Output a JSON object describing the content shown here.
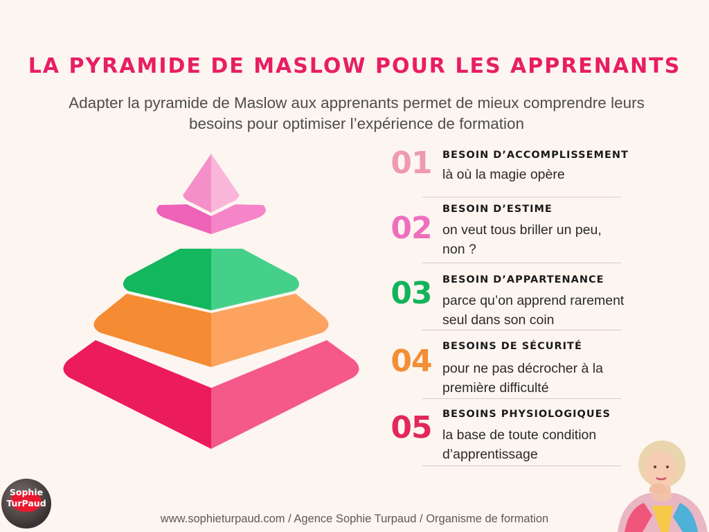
{
  "title": "La pyramide de Maslow pour les apprenants",
  "subtitle": "Adapter la pyramide de Maslow aux apprenants permet de mieux comprendre leurs besoins pour optimiser l’expérience de formation",
  "colors": {
    "title": "#e81e63",
    "level1": "#f48fc8",
    "level2": "#f06dc0",
    "level3": "#1fc46b",
    "level4": "#f7913d",
    "level5": "#ef1f63",
    "num1": "#ee9ab0",
    "num2": "#ee6fbe",
    "num3": "#13b35a",
    "num4": "#f28f34",
    "num5": "#e2285a"
  },
  "items": [
    {
      "num": "01",
      "heading": "Besoin d’accomplissement",
      "desc": "là où la magie opère"
    },
    {
      "num": "02",
      "heading": "Besoin d’estime",
      "desc": "on veut tous briller un peu, non ?"
    },
    {
      "num": "03",
      "heading": "Besoin d’appartenance",
      "desc": "parce qu’on apprend rarement seul dans son coin"
    },
    {
      "num": "04",
      "heading": "Besoins de sécurité",
      "desc": "pour ne pas décrocher à la première difficulté"
    },
    {
      "num": "05",
      "heading": "Besoins physiologiques",
      "desc": "la base de toute condition d’apprentissage"
    }
  ],
  "footer": "www.sophieturpaud.com / Agence Sophie Turpaud / Organisme de formation",
  "logo": {
    "line1": "Sophie",
    "line2": "TurPaud"
  },
  "photo_icon": "person-portrait-icon"
}
